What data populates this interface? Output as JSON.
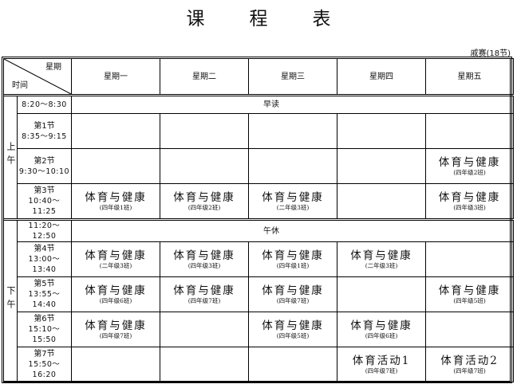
{
  "title": [
    "课",
    "程",
    "表"
  ],
  "teacher": "戚赛(18节)",
  "header": {
    "weekday_label": "星期",
    "time_label": "时间",
    "days": [
      "星期一",
      "星期二",
      "星期三",
      "星期四",
      "星期五"
    ]
  },
  "halves": {
    "morning": "上午",
    "afternoon": "下午"
  },
  "morning_reading": {
    "time": "8:20～8:30",
    "label": "早读"
  },
  "noon_break": {
    "time": "11:20～12:50",
    "label": "午休"
  },
  "periods": [
    {
      "name": "第1节",
      "time": "8:35～9:15",
      "cells": [
        null,
        null,
        null,
        null,
        null
      ]
    },
    {
      "name": "第2节",
      "time": "9:30～10:10",
      "cells": [
        null,
        null,
        null,
        null,
        {
          "course": "体育与健康",
          "class": "(四年级2班)"
        }
      ]
    },
    {
      "name": "第3节",
      "time": "10:40～11:25",
      "cells": [
        {
          "course": "体育与健康",
          "class": "(四年级1班)"
        },
        {
          "course": "体育与健康",
          "class": "(四年级2班)"
        },
        {
          "course": "体育与健康",
          "class": "(二年级3班)"
        },
        null,
        {
          "course": "体育与健康",
          "class": "(四年级3班)"
        }
      ]
    },
    {
      "name": "第4节",
      "time": "13:00～13:40",
      "cells": [
        {
          "course": "体育与健康",
          "class": "(二年级3班)"
        },
        {
          "course": "体育与健康",
          "class": "(四年级3班)"
        },
        {
          "course": "体育与健康",
          "class": "(四年级1班)"
        },
        {
          "course": "体育与健康",
          "class": "(二年级3班)"
        },
        null
      ]
    },
    {
      "name": "第5节",
      "time": "13:55～14:40",
      "cells": [
        {
          "course": "体育与健康",
          "class": "(四年级6班)"
        },
        {
          "course": "体育与健康",
          "class": "(四年级7班)"
        },
        {
          "course": "体育与健康",
          "class": "(四年级7班)"
        },
        null,
        {
          "course": "体育与健康",
          "class": "(四年级5班)"
        }
      ]
    },
    {
      "name": "第6节",
      "time": "15:10～15:50",
      "cells": [
        {
          "course": "体育与健康",
          "class": "(四年级7班)"
        },
        null,
        {
          "course": "体育与健康",
          "class": "(四年级5班)"
        },
        {
          "course": "体育与健康",
          "class": "(四年级6班)"
        },
        null
      ]
    },
    {
      "name": "第7节",
      "time": "15:50～16:20",
      "cells": [
        null,
        null,
        null,
        {
          "course": "体育活动1",
          "class": "(四年级7班)"
        },
        {
          "course": "体育活动2",
          "class": "(四年级7班)"
        }
      ]
    }
  ]
}
